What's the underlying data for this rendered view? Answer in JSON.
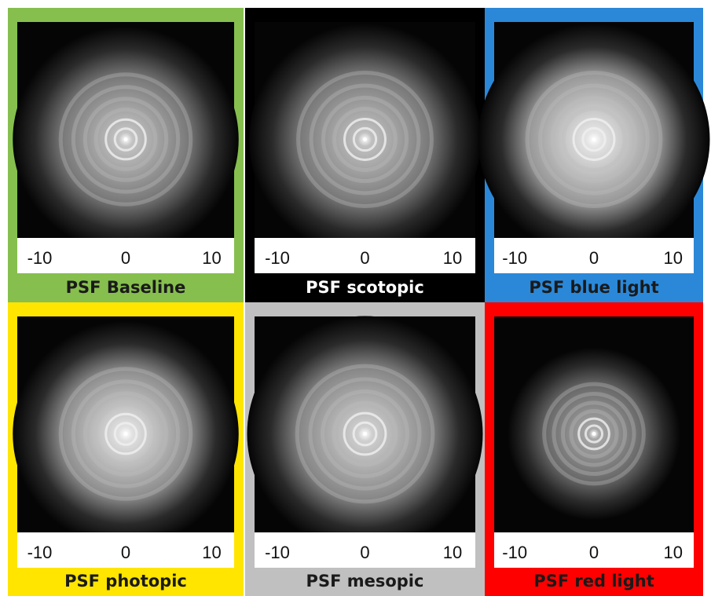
{
  "panels": [
    {
      "title": "PSF Baseline",
      "frame_color": "#86bf4e",
      "xlim": [
        -12.6,
        12.6
      ],
      "xticks": [
        -10,
        0,
        10
      ]
    },
    {
      "title": "PSF scotopic",
      "frame_color": "#000000",
      "xlim": [
        -12.6,
        12.6
      ],
      "xticks": [
        -10,
        0,
        10
      ]
    },
    {
      "title": "PSF blue light",
      "frame_color": "#2b88d8",
      "xlim": [
        -12.6,
        12.6
      ],
      "xticks": [
        -10,
        0,
        10
      ]
    },
    {
      "title": "PSF photopic",
      "frame_color": "#ffe500",
      "xlim": [
        -12.6,
        12.6
      ],
      "xticks": [
        -10,
        0,
        10
      ]
    },
    {
      "title": "PSF mesopic",
      "frame_color": "#c0c0c0",
      "xlim": [
        -12.6,
        12.6
      ],
      "xticks": [
        -10,
        0,
        10
      ]
    },
    {
      "title": "PSF red light",
      "frame_color": "#ff0000",
      "xlim": [
        -12.6,
        12.6
      ],
      "xticks": [
        -10,
        0,
        10
      ]
    }
  ]
}
